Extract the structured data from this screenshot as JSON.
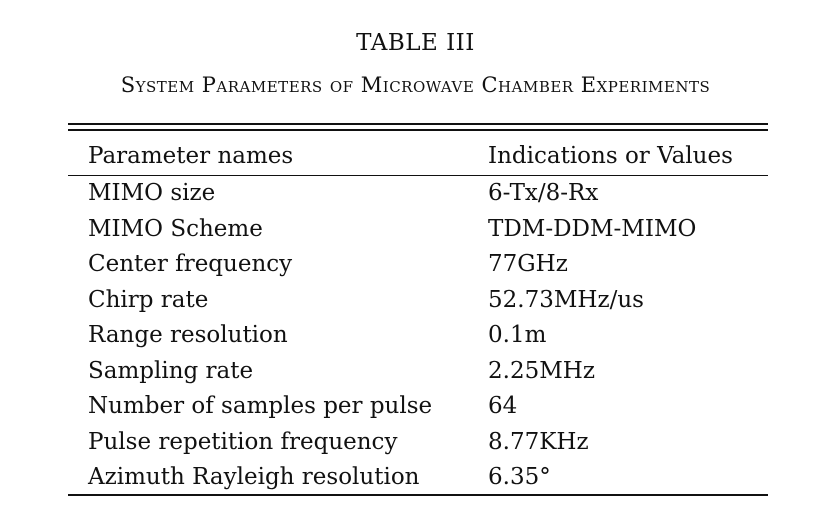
{
  "table": {
    "label": "TABLE III",
    "caption": "System Parameters of Microwave Chamber Experiments",
    "header": {
      "col1": "Parameter names",
      "col2": "Indications or Values"
    },
    "rows": [
      {
        "name": "MIMO size",
        "value": "6-Tx/8-Rx"
      },
      {
        "name": "MIMO Scheme",
        "value": "TDM-DDM-MIMO"
      },
      {
        "name": "Center frequency",
        "value": "77GHz"
      },
      {
        "name": "Chirp rate",
        "value": "52.73MHz/us"
      },
      {
        "name": "Range resolution",
        "value": "0.1m"
      },
      {
        "name": "Sampling rate",
        "value": "2.25MHz"
      },
      {
        "name": "Number of samples per pulse",
        "value": "64"
      },
      {
        "name": "Pulse repetition frequency",
        "value": "8.77KHz"
      },
      {
        "name": "Azimuth Rayleigh resolution",
        "value": "6.35°"
      }
    ]
  }
}
